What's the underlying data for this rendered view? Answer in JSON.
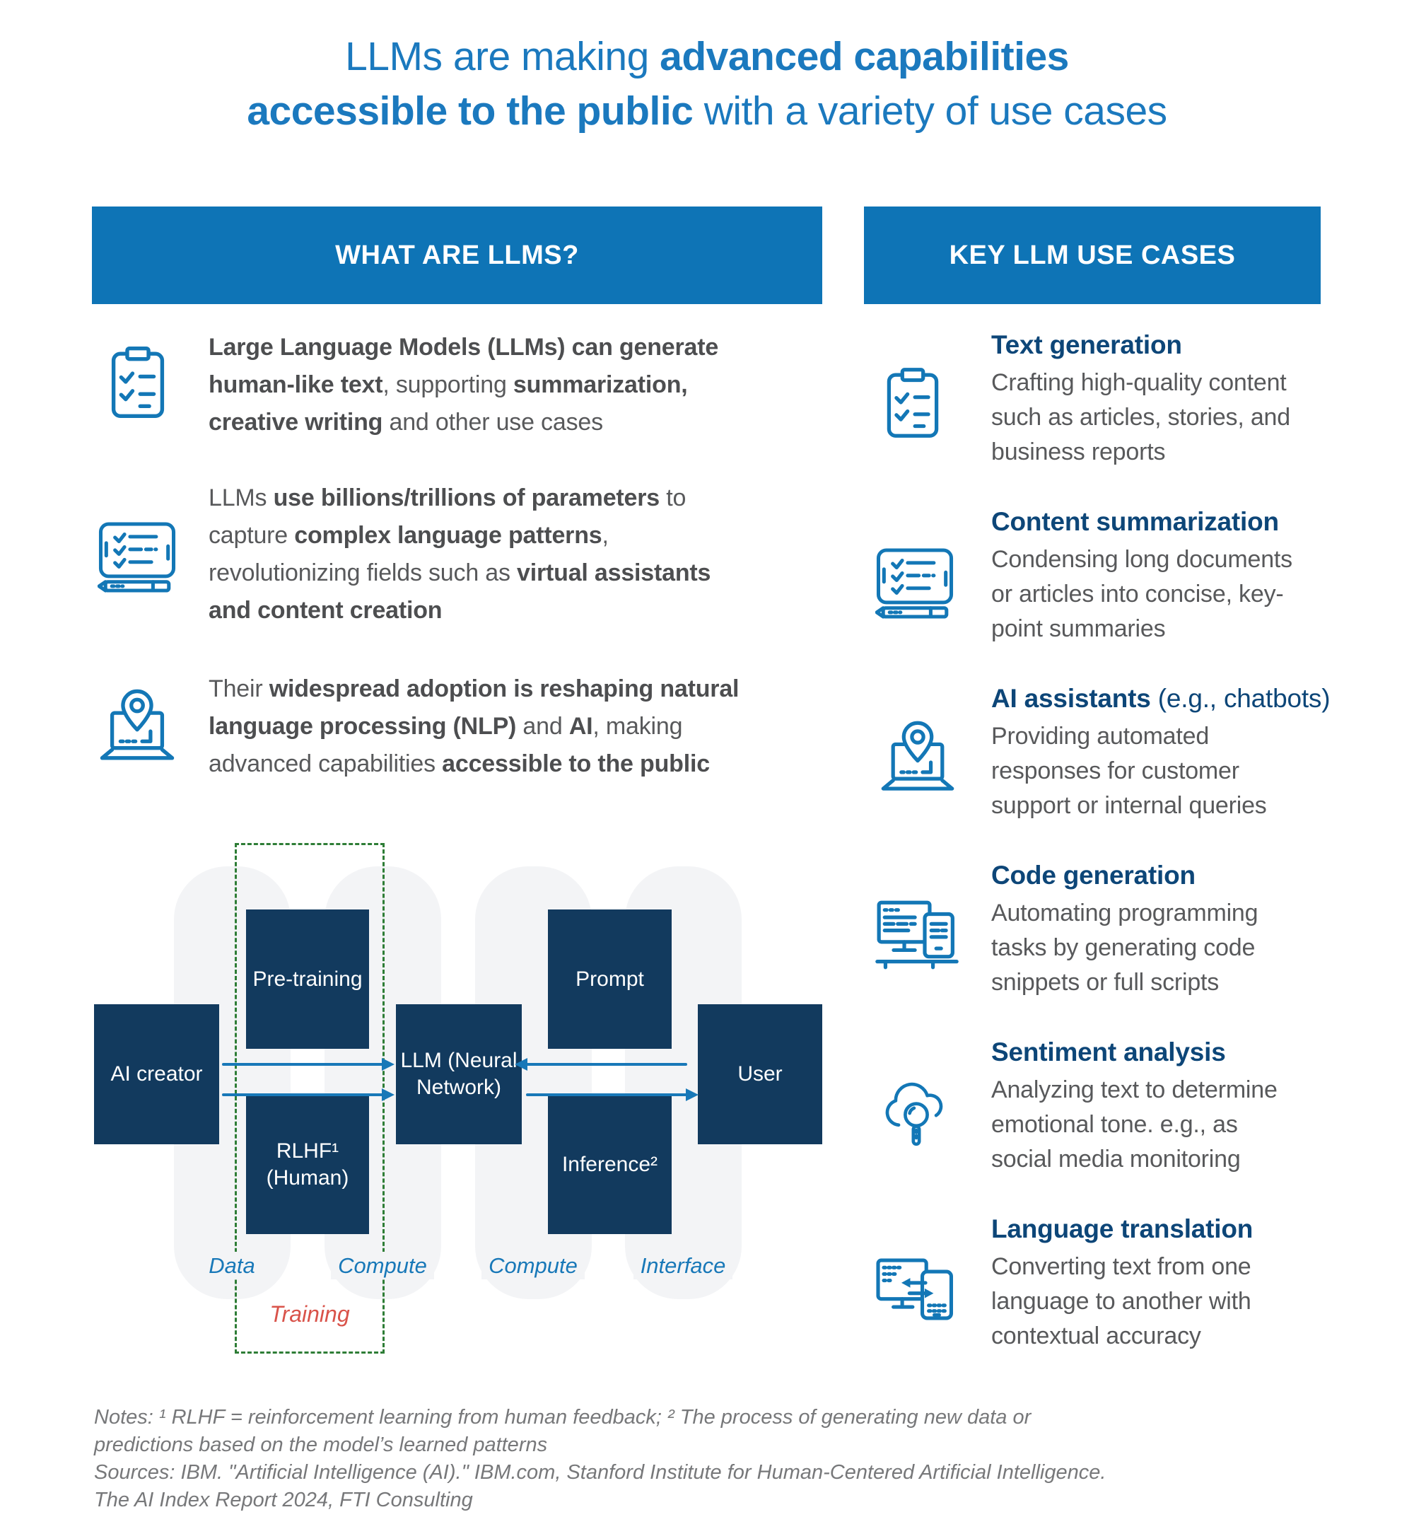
{
  "colors": {
    "banner_blue": "#0E74B6",
    "title_blue": "#1B79BE",
    "navy_box": "#123A5E",
    "heading_navy": "#0D4678",
    "body_gray": "#58595B",
    "icon_blue": "#1377B6",
    "arrow_blue": "#1878B8",
    "training_red": "#D9534A",
    "dash_green": "#2E7D36",
    "pill_gray": "#F3F4F6",
    "notes_gray": "#77787A"
  },
  "title": {
    "line1": [
      {
        "t": "LLMs are making ",
        "b": false
      },
      {
        "t": "advanced capabilities",
        "b": true
      }
    ],
    "line2": [
      {
        "t": "accessible to the public",
        "b": true
      },
      {
        "t": " with a variety of use cases",
        "b": false
      }
    ]
  },
  "left_panel": {
    "header": "WHAT ARE LLMS?",
    "bullets": [
      {
        "icon": "clipboard-checklist-icon",
        "segments": [
          {
            "t": "Large Language Models (LLMs) can generate",
            "b": true
          },
          {
            "br": true
          },
          {
            "t": "human-like text",
            "b": true
          },
          {
            "t": ", supporting ",
            "b": false
          },
          {
            "t": "summarization,",
            "b": true
          },
          {
            "br": true
          },
          {
            "t": "creative writing",
            "b": true
          },
          {
            "t": " and other use cases",
            "b": false
          }
        ]
      },
      {
        "icon": "tablet-checklist-icon",
        "segments": [
          {
            "t": "LLMs ",
            "b": false
          },
          {
            "t": "use billions/trillions of parameters",
            "b": true
          },
          {
            "t": " to",
            "b": false
          },
          {
            "br": true
          },
          {
            "t": "capture ",
            "b": false
          },
          {
            "t": "complex language patterns",
            "b": true
          },
          {
            "t": ",",
            "b": false
          },
          {
            "br": true
          },
          {
            "t": "revolutionizing fields such as ",
            "b": false
          },
          {
            "t": "virtual assistants",
            "b": true
          },
          {
            "br": true
          },
          {
            "t": "and content creation",
            "b": true
          }
        ]
      },
      {
        "icon": "laptop-location-pin-icon",
        "segments": [
          {
            "t": "Their ",
            "b": false
          },
          {
            "t": "widespread adoption is reshaping natural",
            "b": true
          },
          {
            "br": true
          },
          {
            "t": "language processing (NLP)",
            "b": true
          },
          {
            "t": " and ",
            "b": false
          },
          {
            "t": "AI",
            "b": true
          },
          {
            "t": ", making",
            "b": false
          },
          {
            "br": true
          },
          {
            "t": "advanced capabilities ",
            "b": false
          },
          {
            "t": "accessible to the public",
            "b": true
          }
        ]
      }
    ]
  },
  "diagram": {
    "boxes": {
      "ai_creator": "AI creator",
      "pre_training": "Pre-training",
      "rlhf": "RLHF¹\n(Human)",
      "llm": "LLM (Neural\nNetwork)",
      "prompt": "Prompt",
      "inference": "Inference²",
      "user": "User"
    },
    "lane_labels": [
      "Data",
      "Compute",
      "Compute",
      "Interface"
    ],
    "training_label": "Training",
    "arrows": [
      {
        "from": "AI creator",
        "to": "LLM (Neural Network)",
        "direction": "right"
      },
      {
        "from": "AI creator",
        "to": "LLM (Neural Network)",
        "direction": "right"
      },
      {
        "from": "User",
        "to": "LLM (Neural Network)",
        "direction": "left"
      },
      {
        "from": "LLM (Neural Network)",
        "to": "User",
        "direction": "right"
      }
    ]
  },
  "right_panel": {
    "header": "KEY LLM USE CASES",
    "use_cases": [
      {
        "icon": "clipboard-checklist-icon",
        "title": [
          {
            "t": "Text generation",
            "b": true
          }
        ],
        "description": "Crafting high-quality content\nsuch as articles, stories, and\nbusiness reports"
      },
      {
        "icon": "tablet-checklist-icon",
        "title": [
          {
            "t": "Content summarization",
            "b": true
          }
        ],
        "description": "Condensing long documents\nor articles into concise, key-\npoint summaries"
      },
      {
        "icon": "laptop-location-pin-icon",
        "title": [
          {
            "t": "AI assistants",
            "b": true
          },
          {
            "t": " (e.g., chatbots)",
            "b": false
          }
        ],
        "description": "Providing automated\nresponses for customer\nsupport or internal queries"
      },
      {
        "icon": "desktop-and-device-code-icon",
        "title": [
          {
            "t": "Code generation",
            "b": true
          }
        ],
        "description": "Automating programming\ntasks by generating code\nsnippets or full scripts"
      },
      {
        "icon": "cloud-magnifier-icon",
        "title": [
          {
            "t": "Sentiment analysis",
            "b": true
          }
        ],
        "description": "Analyzing text to determine\nemotional tone. e.g., as\nsocial media monitoring"
      },
      {
        "icon": "translation-devices-icon",
        "title": [
          {
            "t": "Language translation",
            "b": true
          }
        ],
        "description": "Converting text from one\nlanguage to another with\ncontextual accuracy"
      }
    ]
  },
  "notes": "Notes: ¹ RLHF = reinforcement learning from human feedback; ² The process of generating new data or\npredictions based on the model’s learned patterns\nSources: IBM. \"Artificial Intelligence (AI).\" IBM.com, Stanford Institute for Human-Centered Artificial Intelligence.\nThe AI Index Report 2024, FTI Consulting"
}
